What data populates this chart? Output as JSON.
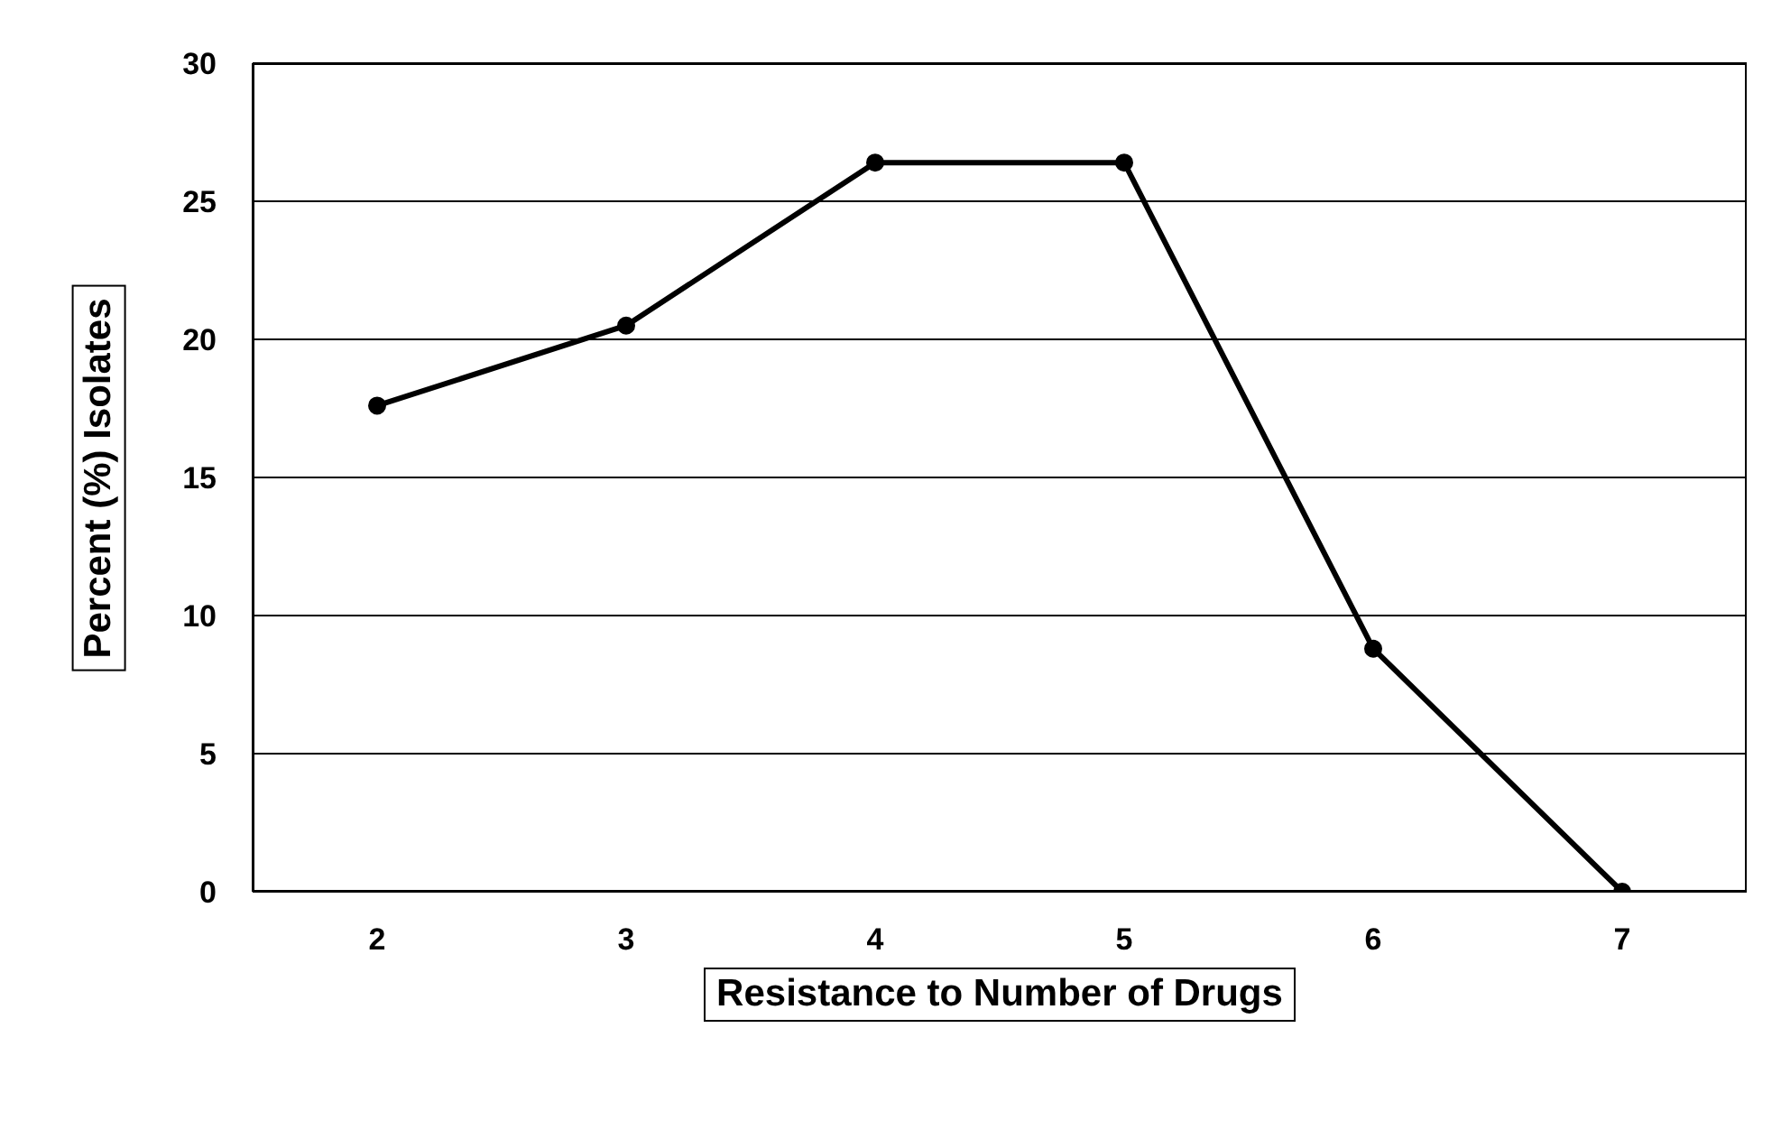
{
  "chart_data": {
    "type": "line",
    "xlabel": "Resistance to Number of Drugs",
    "ylabel": "Percent (%) Isolates",
    "categories": [
      "2",
      "3",
      "4",
      "5",
      "6",
      "7"
    ],
    "series": [
      {
        "color": "#000000",
        "values": [
          17.6,
          20.5,
          26.4,
          26.4,
          8.8,
          0
        ]
      }
    ],
    "ylim": [
      0,
      30
    ],
    "yticks": [
      0,
      5,
      10,
      15,
      20,
      25,
      30
    ],
    "grid": "y",
    "marker": "circle",
    "line_style": "solid"
  }
}
